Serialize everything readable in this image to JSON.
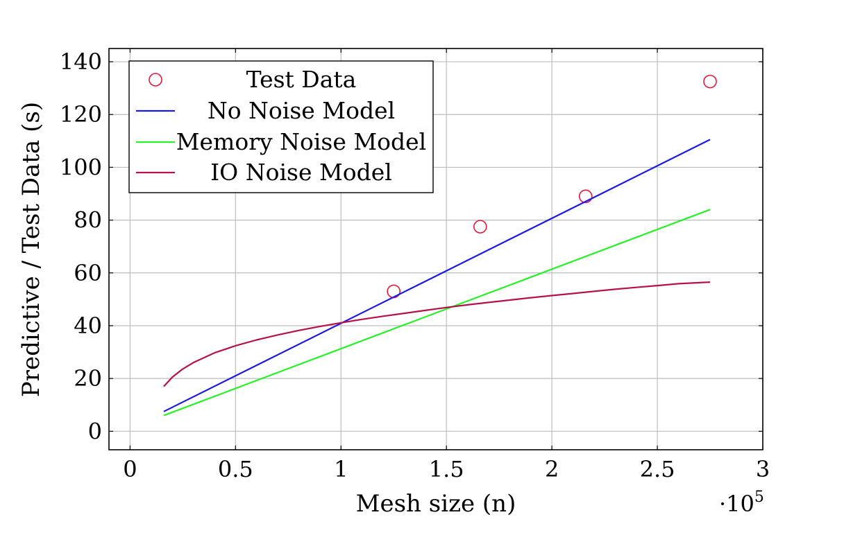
{
  "chart_data": {
    "type": "line",
    "xlabel": "Mesh size (n)",
    "ylabel": "Predictive / Test Data (s)",
    "x_scale_label": "·10",
    "x_scale_exponent": "5",
    "xlim": [
      -0.1,
      3.0
    ],
    "ylim": [
      -7,
      145
    ],
    "x_ticks": [
      0,
      0.5,
      1,
      1.5,
      2,
      2.5,
      3
    ],
    "x_tick_labels": [
      "0",
      "0.5",
      "1",
      "1.5",
      "2",
      "2.5",
      "3"
    ],
    "y_ticks": [
      0,
      20,
      40,
      60,
      80,
      100,
      120,
      140
    ],
    "y_tick_labels": [
      "0",
      "20",
      "40",
      "60",
      "80",
      "100",
      "120",
      "140"
    ],
    "grid": true,
    "legend_position": "top-left",
    "series": [
      {
        "name": "Test Data",
        "kind": "scatter",
        "marker": "open-circle",
        "color": "#e8173b",
        "x": [
          1.25,
          1.66,
          2.16,
          2.75
        ],
        "y": [
          53,
          77.5,
          89,
          132.5
        ]
      },
      {
        "name": "No Noise Model",
        "kind": "line",
        "color": "#1a1ae6",
        "x": [
          0.16,
          2.75
        ],
        "y": [
          7.5,
          110.5
        ]
      },
      {
        "name": "Memory Noise Model",
        "kind": "line",
        "color": "#26f026",
        "x": [
          0.16,
          2.75
        ],
        "y": [
          6,
          84
        ]
      },
      {
        "name": "IO Noise Model",
        "kind": "line",
        "color": "#b5104a",
        "x": [
          0.16,
          0.2,
          0.25,
          0.3,
          0.4,
          0.5,
          0.6,
          0.7,
          0.8,
          0.9,
          1.0,
          1.1,
          1.2,
          1.3,
          1.4,
          1.5,
          1.6,
          1.7,
          1.8,
          1.9,
          2.0,
          2.1,
          2.2,
          2.3,
          2.4,
          2.5,
          2.6,
          2.75
        ],
        "y": [
          17,
          20.5,
          23.6,
          26,
          29.7,
          32.4,
          34.6,
          36.5,
          38.2,
          39.7,
          41.1,
          42.4,
          43.6,
          44.7,
          45.8,
          46.9,
          47.9,
          48.8,
          49.7,
          50.6,
          51.4,
          52.2,
          53,
          53.8,
          54.5,
          55.2,
          55.9,
          56.5
        ]
      }
    ]
  }
}
